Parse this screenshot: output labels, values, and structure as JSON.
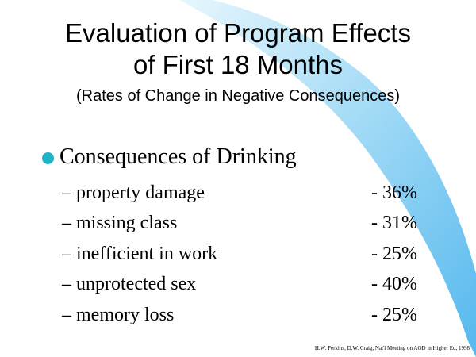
{
  "slide": {
    "title_line1": "Evaluation of Program Effects",
    "title_line2": "of First 18 Months",
    "subtitle": "(Rates of Change in Negative Consequences)",
    "bullet": "Consequences of Drinking",
    "items": [
      {
        "label": "– property damage",
        "value": "- 36%"
      },
      {
        "label": "– missing class",
        "value": "- 31%"
      },
      {
        "label": "– inefficient in work",
        "value": "- 25%"
      },
      {
        "label": "– unprotected sex",
        "value": "- 40%"
      },
      {
        "label": "– memory loss",
        "value": "- 25%"
      }
    ],
    "citation": "H.W. Perkins, D.W. Craig, Nat'l Meeting on AOD in Higher Ed, 1998"
  },
  "colors": {
    "swoosh_light": "#d8f1fb",
    "swoosh_dark": "#5bbcee",
    "bullet_dot": "#1fb3c6"
  }
}
